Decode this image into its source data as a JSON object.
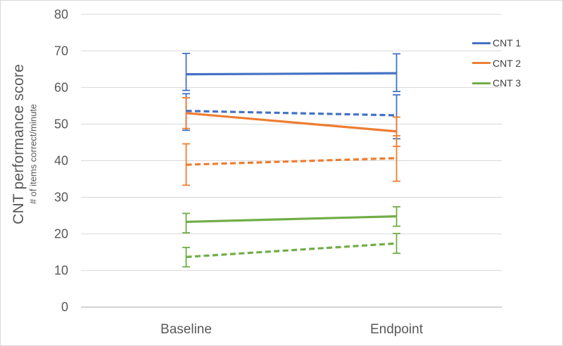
{
  "chart_data": {
    "type": "line",
    "title": "",
    "categories": [
      "Baseline",
      "Endpoint"
    ],
    "ylabel": "CNT performance score",
    "ylabel_sub": "# of items correct/minute",
    "ylim": [
      0,
      80
    ],
    "yticks": [
      0,
      10,
      20,
      30,
      40,
      50,
      60,
      70,
      80
    ],
    "grid": true,
    "legend_position": "right-top",
    "legend_entries": [
      {
        "label": "CNT 1",
        "color": "#4472C4"
      },
      {
        "label": "CNT 2",
        "color": "#ED7D31"
      },
      {
        "label": "CNT 3",
        "color": "#70AD47"
      }
    ],
    "series": [
      {
        "name": "CNT 1",
        "color": "#4472C4",
        "line_style": "solid",
        "values": [
          63.6,
          63.9
        ],
        "err_low": [
          59.2,
          58.9
        ],
        "err_high": [
          69.3,
          69.2
        ]
      },
      {
        "name": "CNT 1 (dashed)",
        "color": "#4472C4",
        "line_style": "dashed",
        "values": [
          53.6,
          52.4
        ],
        "err_low": [
          48.3,
          46.0
        ],
        "err_high": [
          58.3,
          58.0
        ]
      },
      {
        "name": "CNT 2",
        "color": "#ED7D31",
        "line_style": "solid",
        "values": [
          53.0,
          48.0
        ],
        "err_low": [
          48.8,
          43.9
        ],
        "err_high": [
          57.2,
          51.9
        ]
      },
      {
        "name": "CNT 2 (dashed)",
        "color": "#ED7D31",
        "line_style": "dashed",
        "values": [
          38.9,
          40.7
        ],
        "err_low": [
          33.3,
          34.4
        ],
        "err_high": [
          44.6,
          46.8
        ]
      },
      {
        "name": "CNT 3",
        "color": "#70AD47",
        "line_style": "solid",
        "values": [
          23.3,
          24.8
        ],
        "err_low": [
          20.3,
          22.1
        ],
        "err_high": [
          25.6,
          27.4
        ]
      },
      {
        "name": "CNT 3 (dashed)",
        "color": "#70AD47",
        "line_style": "dashed",
        "values": [
          13.7,
          17.4
        ],
        "err_low": [
          11.0,
          14.7
        ],
        "err_high": [
          16.3,
          20.1
        ]
      }
    ]
  }
}
